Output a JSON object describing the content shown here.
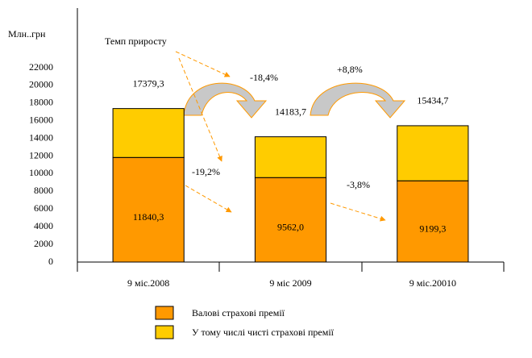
{
  "chart_data": {
    "type": "stacked_bar",
    "y_label": "Млн..грн",
    "categories": [
      "9 міс.2008",
      "9 міс 2009",
      "9 міс.20010"
    ],
    "series": [
      {
        "name": "Валові страхові премії",
        "color": "#ff9900",
        "values": [
          11840.3,
          9562.0,
          9199.3
        ],
        "value_labels": [
          "11840,3",
          "9562,0",
          "9199,3"
        ]
      },
      {
        "name": "У тому числі чисті страхові премії",
        "color": "#ffcc00",
        "values": [
          5539.0,
          4621.7,
          6235.4
        ]
      }
    ],
    "totals": [
      17379.3,
      14183.7,
      15434.7
    ],
    "total_labels": [
      "17379,3",
      "14183,7",
      "15434,7"
    ],
    "annotations": [
      "Темп приросту",
      "-18,4%",
      "+8,8%",
      "-19,2%",
      "-3,8%"
    ],
    "ylim": [
      0,
      22000
    ],
    "yticks": [
      0,
      2000,
      4000,
      6000,
      8000,
      10000,
      12000,
      14000,
      16000,
      18000,
      20000,
      22000
    ]
  }
}
